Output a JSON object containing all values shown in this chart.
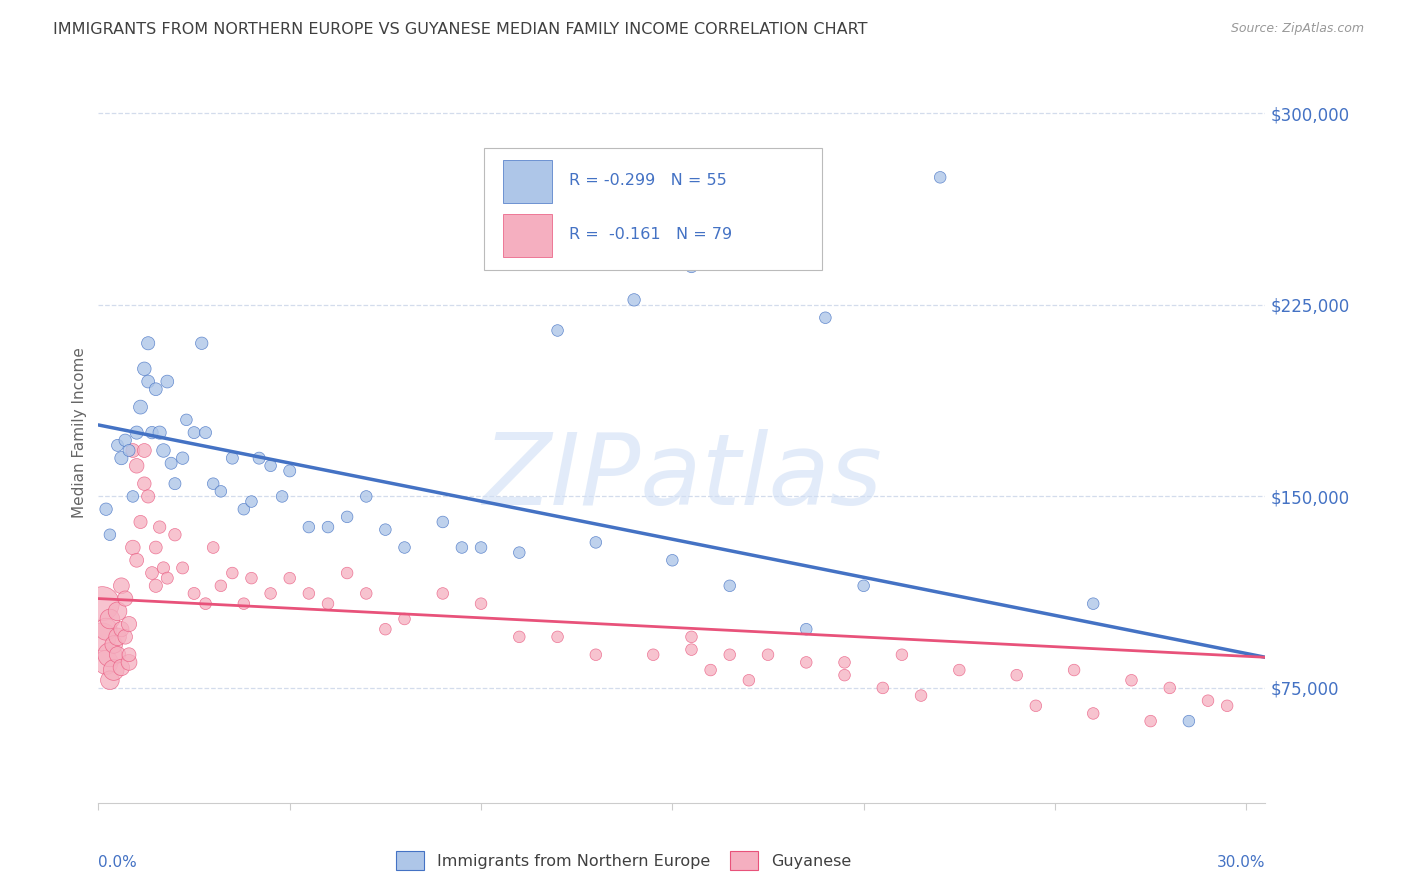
{
  "title": "IMMIGRANTS FROM NORTHERN EUROPE VS GUYANESE MEDIAN FAMILY INCOME CORRELATION CHART",
  "source": "Source: ZipAtlas.com",
  "ylabel": "Median Family Income",
  "watermark": "ZIPatlas",
  "yticks": [
    75000,
    150000,
    225000,
    300000
  ],
  "ytick_labels": [
    "$75,000",
    "$150,000",
    "$225,000",
    "$300,000"
  ],
  "ylim": [
    30000,
    320000
  ],
  "xlim": [
    0.0,
    0.305
  ],
  "blue_scatter": {
    "x": [
      0.002,
      0.003,
      0.005,
      0.006,
      0.007,
      0.008,
      0.009,
      0.01,
      0.011,
      0.012,
      0.013,
      0.013,
      0.014,
      0.015,
      0.016,
      0.017,
      0.018,
      0.019,
      0.02,
      0.022,
      0.023,
      0.025,
      0.027,
      0.028,
      0.03,
      0.032,
      0.035,
      0.038,
      0.04,
      0.042,
      0.045,
      0.048,
      0.05,
      0.055,
      0.06,
      0.065,
      0.07,
      0.08,
      0.09,
      0.095,
      0.1,
      0.11,
      0.12,
      0.13,
      0.15,
      0.165,
      0.185,
      0.2,
      0.22,
      0.26,
      0.19,
      0.155,
      0.14,
      0.285,
      0.075
    ],
    "y": [
      145000,
      135000,
      170000,
      165000,
      172000,
      168000,
      150000,
      175000,
      185000,
      200000,
      195000,
      210000,
      175000,
      192000,
      175000,
      168000,
      195000,
      163000,
      155000,
      165000,
      180000,
      175000,
      210000,
      175000,
      155000,
      152000,
      165000,
      145000,
      148000,
      165000,
      162000,
      150000,
      160000,
      138000,
      138000,
      142000,
      150000,
      130000,
      140000,
      130000,
      130000,
      128000,
      215000,
      132000,
      125000,
      115000,
      98000,
      115000,
      275000,
      108000,
      220000,
      240000,
      227000,
      62000,
      137000
    ],
    "sizes": [
      80,
      70,
      75,
      90,
      80,
      75,
      70,
      90,
      100,
      95,
      85,
      90,
      80,
      85,
      90,
      95,
      85,
      75,
      75,
      80,
      70,
      75,
      80,
      75,
      70,
      70,
      75,
      70,
      70,
      75,
      70,
      70,
      75,
      70,
      70,
      70,
      70,
      70,
      70,
      70,
      70,
      70,
      70,
      70,
      70,
      70,
      70,
      70,
      70,
      70,
      70,
      75,
      80,
      70,
      70
    ]
  },
  "pink_scatter": {
    "x": [
      0.001,
      0.001,
      0.002,
      0.002,
      0.003,
      0.003,
      0.003,
      0.004,
      0.004,
      0.005,
      0.005,
      0.005,
      0.006,
      0.006,
      0.006,
      0.007,
      0.007,
      0.008,
      0.008,
      0.008,
      0.009,
      0.009,
      0.01,
      0.01,
      0.011,
      0.012,
      0.012,
      0.013,
      0.014,
      0.015,
      0.015,
      0.016,
      0.017,
      0.018,
      0.02,
      0.022,
      0.025,
      0.028,
      0.03,
      0.032,
      0.035,
      0.038,
      0.04,
      0.045,
      0.05,
      0.055,
      0.06,
      0.065,
      0.07,
      0.075,
      0.08,
      0.09,
      0.1,
      0.11,
      0.12,
      0.13,
      0.145,
      0.155,
      0.165,
      0.185,
      0.195,
      0.21,
      0.225,
      0.24,
      0.255,
      0.27,
      0.28,
      0.29,
      0.295,
      0.155,
      0.16,
      0.17,
      0.175,
      0.195,
      0.205,
      0.215,
      0.245,
      0.26,
      0.275
    ],
    "y": [
      108000,
      95000,
      85000,
      98000,
      102000,
      88000,
      78000,
      92000,
      82000,
      105000,
      88000,
      95000,
      115000,
      98000,
      83000,
      110000,
      95000,
      85000,
      100000,
      88000,
      130000,
      168000,
      162000,
      125000,
      140000,
      155000,
      168000,
      150000,
      120000,
      115000,
      130000,
      138000,
      122000,
      118000,
      135000,
      122000,
      112000,
      108000,
      130000,
      115000,
      120000,
      108000,
      118000,
      112000,
      118000,
      112000,
      108000,
      120000,
      112000,
      98000,
      102000,
      112000,
      108000,
      95000,
      95000,
      88000,
      88000,
      90000,
      88000,
      85000,
      85000,
      88000,
      82000,
      80000,
      82000,
      78000,
      75000,
      70000,
      68000,
      95000,
      82000,
      78000,
      88000,
      80000,
      75000,
      72000,
      68000,
      65000,
      62000
    ],
    "sizes": [
      600,
      400,
      300,
      250,
      200,
      300,
      180,
      160,
      220,
      180,
      140,
      160,
      130,
      120,
      140,
      120,
      110,
      130,
      120,
      100,
      110,
      100,
      110,
      100,
      90,
      95,
      100,
      90,
      85,
      90,
      85,
      80,
      78,
      75,
      80,
      75,
      75,
      72,
      72,
      70,
      70,
      70,
      70,
      70,
      70,
      70,
      70,
      70,
      70,
      70,
      70,
      70,
      70,
      70,
      70,
      70,
      70,
      70,
      70,
      70,
      70,
      70,
      70,
      70,
      70,
      70,
      70,
      70,
      70,
      70,
      70,
      70,
      70,
      70,
      70,
      70,
      70,
      70,
      70
    ]
  },
  "blue_line": {
    "x0": 0.0,
    "y0": 178000,
    "x1": 0.305,
    "y1": 87000
  },
  "pink_line": {
    "x0": 0.0,
    "y0": 110000,
    "x1": 0.305,
    "y1": 87000
  },
  "blue_color": "#4472c4",
  "pink_color": "#e8527a",
  "blue_fill": "#aec6e8",
  "pink_fill": "#f5afc0",
  "axis_color": "#4472c4",
  "grid_color": "#c8d4e8",
  "title_color": "#404040",
  "source_color": "#999999"
}
